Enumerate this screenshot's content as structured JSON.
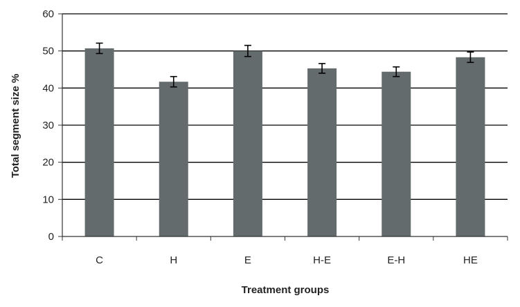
{
  "chart_data": {
    "type": "bar",
    "title": "",
    "xlabel": "Treatment groups",
    "ylabel": "Total segment size %",
    "categories": [
      "C",
      "H",
      "E",
      "H-E",
      "E-H",
      "HE"
    ],
    "series": [
      {
        "values": [
          50.7,
          41.7,
          50.0,
          45.3,
          44.4,
          48.3
        ],
        "error": [
          1.4,
          1.4,
          1.5,
          1.3,
          1.3,
          1.4
        ]
      }
    ],
    "ylim": [
      0,
      60
    ],
    "yticks": [
      0,
      10,
      20,
      30,
      40,
      50,
      60
    ],
    "grid": true,
    "legend": "none",
    "colors": {
      "bar": "#646b6d",
      "grid": "#000000",
      "axis": "#333333",
      "error": "#000000"
    }
  }
}
